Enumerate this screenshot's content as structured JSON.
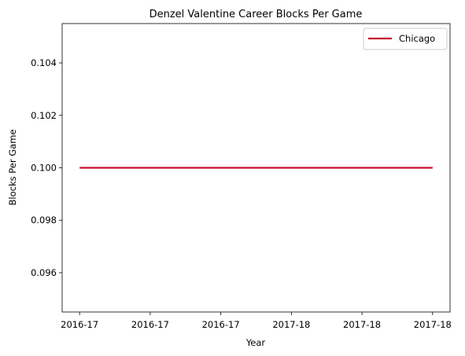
{
  "chart_data": {
    "type": "line",
    "title": "Denzel Valentine Career Blocks Per Game",
    "xlabel": "Year",
    "ylabel": "Blocks Per Game",
    "x_tick_labels": [
      "2016-17",
      "2016-17",
      "2016-17",
      "2017-18",
      "2017-18",
      "2017-18"
    ],
    "y_ticks": [
      0.096,
      0.098,
      0.1,
      0.102,
      0.104
    ],
    "ylim": [
      0.0945,
      0.1055
    ],
    "xlim": [
      0,
      1
    ],
    "series": [
      {
        "name": "Chicago",
        "color": "#c8102e",
        "x": [
          0,
          1
        ],
        "y": [
          0.1,
          0.1
        ]
      }
    ],
    "grid": false,
    "legend": "upper right"
  }
}
